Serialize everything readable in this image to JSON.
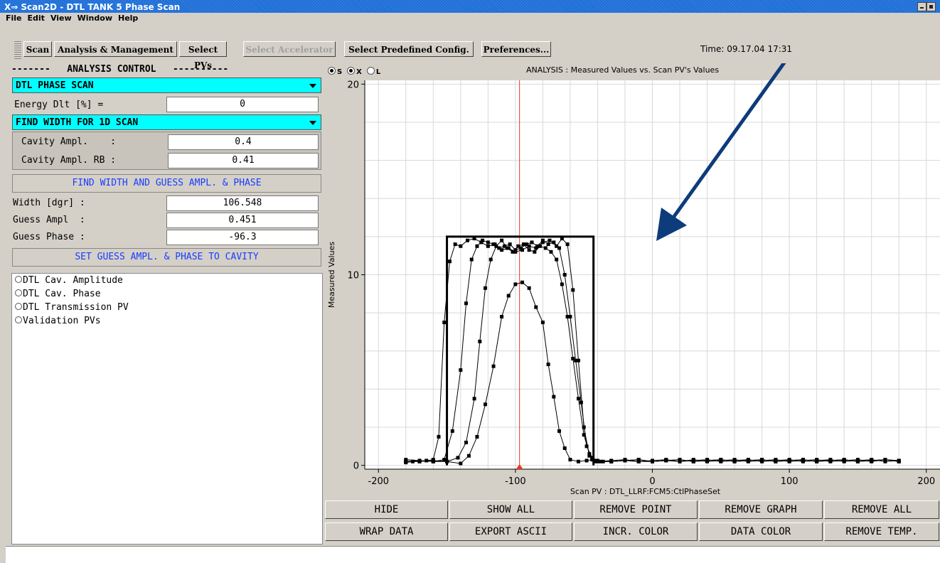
{
  "window": {
    "title": "Scan2D - DTL TANK 5 Phase Scan"
  },
  "menu": [
    "File",
    "Edit",
    "View",
    "Window",
    "Help"
  ],
  "toolbar": {
    "buttons": [
      {
        "label": "Scan",
        "enabled": true
      },
      {
        "label": "Analysis & Management",
        "enabled": true
      },
      {
        "label": "Select PVs",
        "enabled": true
      },
      {
        "label": "Select Accelerator",
        "enabled": false
      },
      {
        "label": "Select Predefined Config.",
        "enabled": true
      },
      {
        "label": "Preferences...",
        "enabled": true
      }
    ],
    "time": "Time: 09.17.04 17:31"
  },
  "analysis": {
    "header": "-------   ANALYSIS CONTROL   ----------",
    "scan_type": "DTL PHASE SCAN",
    "energy_label": "Energy Dlt [%] =",
    "energy_value": "0",
    "algorithm": "FIND WIDTH FOR 1D SCAN",
    "cavity_ampl_label": "Cavity Ampl.    :",
    "cavity_ampl_value": "0.4",
    "cavity_ampl_rb_label": "Cavity Ampl. RB :",
    "cavity_ampl_rb_value": "0.41",
    "find_button": "FIND WIDTH AND GUESS AMPL. & PHASE",
    "width_label": "Width [dgr] :",
    "width_value": "106.548",
    "guess_ampl_label": "Guess Ampl  :",
    "guess_ampl_value": "0.451",
    "guess_phase_label": "Guess Phase :",
    "guess_phase_value": "-96.3",
    "set_button": "SET GUESS AMPL. & PHASE TO CAVITY"
  },
  "tree": [
    "DTL Cav. Amplitude",
    "DTL Cav. Phase",
    "DTL Transmission PV",
    "Validation PVs"
  ],
  "graph": {
    "radio_labels": [
      "S",
      "X",
      "L"
    ],
    "title": "ANALYSIS : Measured Values vs. Scan PV's Values",
    "buttons_row1": [
      "HIDE",
      "SHOW ALL",
      "REMOVE POINT",
      "REMOVE GRAPH",
      "REMOVE ALL"
    ],
    "buttons_row2": [
      "WRAP DATA",
      "EXPORT ASCII",
      "INCR. COLOR",
      "DATA COLOR",
      "REMOVE TEMP."
    ]
  },
  "chart_data": {
    "type": "line",
    "title": "ANALYSIS : Measured Values vs. Scan PV's Values",
    "xlabel": "Scan PV : DTL_LLRF:FCM5:CtlPhaseSet",
    "ylabel": "Measured Values",
    "xlim": [
      -210,
      210
    ],
    "ylim": [
      -0.2,
      20.2
    ],
    "x_ticks": [
      -200,
      -100,
      0,
      100,
      200
    ],
    "y_ticks": [
      0,
      10,
      20
    ],
    "grid": true,
    "marker_x": -97,
    "box": {
      "x": [
        -150,
        -150,
        -43,
        -43
      ],
      "y": [
        0,
        12,
        12,
        0
      ]
    },
    "series": [
      {
        "x": [
          -180,
          -175,
          -170,
          -165,
          -160,
          -156,
          -152,
          -148,
          -144,
          -140,
          -135,
          -130,
          -125,
          -120,
          -115,
          -110,
          -105,
          -100,
          -95,
          -90,
          -85,
          -80,
          -75,
          -70,
          -66,
          -62,
          -58,
          -54,
          -50,
          -46,
          -42,
          -38,
          -30,
          -20,
          -10,
          0,
          10,
          20,
          30,
          40,
          50,
          60,
          70,
          80,
          90,
          100,
          110,
          120,
          130,
          140,
          150,
          160,
          170,
          180
        ],
        "y": [
          0.15,
          0.2,
          0.2,
          0.25,
          0.3,
          1.5,
          7.5,
          10.7,
          11.6,
          11.5,
          11.8,
          11.9,
          11.7,
          11.5,
          11.6,
          11.3,
          11.4,
          11.2,
          11.3,
          11.5,
          11.4,
          11.7,
          11.8,
          11.5,
          11.9,
          11.6,
          9.2,
          5.5,
          2.0,
          0.5,
          0.2,
          0.2,
          0.2,
          0.25,
          0.2,
          0.2,
          0.25,
          0.2,
          0.3,
          0.2,
          0.25,
          0.3,
          0.2,
          0.25,
          0.3,
          0.2,
          0.25,
          0.3,
          0.2,
          0.25,
          0.3,
          0.2,
          0.3,
          0.25
        ]
      },
      {
        "x": [
          -180,
          -170,
          -160,
          -152,
          -146,
          -140,
          -136,
          -132,
          -128,
          -124,
          -120,
          -116,
          -112,
          -108,
          -104,
          -100,
          -96,
          -92,
          -88,
          -84,
          -80,
          -76,
          -72,
          -68,
          -64,
          -60,
          -56,
          -52,
          -48,
          -44,
          -40,
          -30,
          -20,
          -10,
          0,
          10,
          20,
          30,
          40,
          50,
          60,
          70,
          80,
          90,
          100,
          110,
          120,
          130,
          140,
          150,
          160,
          170,
          180
        ],
        "y": [
          0.2,
          0.25,
          0.2,
          0.3,
          1.8,
          5.0,
          8.5,
          10.8,
          11.5,
          11.8,
          11.7,
          11.6,
          11.4,
          11.5,
          11.6,
          11.3,
          11.4,
          11.6,
          11.7,
          11.5,
          11.8,
          11.6,
          11.7,
          11.4,
          10.0,
          7.8,
          5.5,
          3.3,
          1.0,
          0.4,
          0.25,
          0.2,
          0.25,
          0.3,
          0.2,
          0.25,
          0.3,
          0.2,
          0.25,
          0.3,
          0.2,
          0.25,
          0.3,
          0.2,
          0.25,
          0.3,
          0.2,
          0.25,
          0.3,
          0.2,
          0.25,
          0.3,
          0.2
        ]
      },
      {
        "x": [
          -180,
          -170,
          -160,
          -150,
          -142,
          -136,
          -130,
          -126,
          -122,
          -118,
          -114,
          -110,
          -106,
          -102,
          -98,
          -94,
          -90,
          -86,
          -82,
          -78,
          -74,
          -70,
          -66,
          -62,
          -58,
          -54,
          -50,
          -46,
          -42,
          -36,
          -30,
          -20,
          -10,
          0,
          10,
          20,
          30,
          40,
          50,
          60,
          70,
          80,
          90,
          100,
          110,
          120,
          130,
          140,
          150,
          160,
          170,
          180
        ],
        "y": [
          0.2,
          0.2,
          0.25,
          0.2,
          0.4,
          1.2,
          3.5,
          6.5,
          9.3,
          10.8,
          11.5,
          11.8,
          11.4,
          11.2,
          11.5,
          11.6,
          11.3,
          11.2,
          11.5,
          11.4,
          11.2,
          10.8,
          9.5,
          7.8,
          5.6,
          3.5,
          1.6,
          0.6,
          0.25,
          0.2,
          0.2,
          0.25,
          0.3,
          0.2,
          0.25,
          0.3,
          0.2,
          0.25,
          0.3,
          0.2,
          0.25,
          0.3,
          0.2,
          0.25,
          0.3,
          0.2,
          0.25,
          0.3,
          0.2,
          0.25,
          0.3,
          0.2
        ]
      },
      {
        "x": [
          -180,
          -170,
          -160,
          -150,
          -140,
          -134,
          -128,
          -122,
          -116,
          -110,
          -105,
          -100,
          -95,
          -90,
          -85,
          -80,
          -76,
          -72,
          -68,
          -64,
          -60,
          -54,
          -48,
          -44,
          -40,
          -30,
          -20,
          -10,
          0,
          10,
          20,
          30,
          40,
          50,
          60,
          70,
          80,
          90,
          100,
          110,
          120,
          130,
          140,
          150,
          160,
          170,
          180
        ],
        "y": [
          0.3,
          0.25,
          0.2,
          0.2,
          0.1,
          0.5,
          1.5,
          3.2,
          5.2,
          7.8,
          8.9,
          9.5,
          9.6,
          9.3,
          8.3,
          7.5,
          5.3,
          3.6,
          1.8,
          0.9,
          0.3,
          0.2,
          0.25,
          0.3,
          0.2,
          0.25,
          0.3,
          0.2,
          0.25,
          0.3,
          0.2,
          0.25,
          0.3,
          0.2,
          0.25,
          0.3,
          0.2,
          0.25,
          0.3,
          0.2,
          0.25,
          0.3,
          0.2,
          0.25,
          0.3,
          0.2,
          0.25
        ]
      }
    ]
  }
}
